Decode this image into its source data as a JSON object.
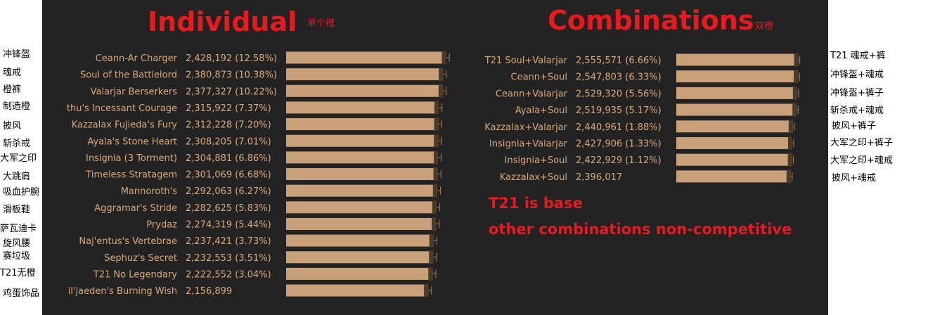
{
  "colors": {
    "panel": "#232323",
    "bar": "#c9a078",
    "bar_text": "#d9a878",
    "whisker": "#a87e5a",
    "marker": "#4a3a2a",
    "title": "#e8191f"
  },
  "header": {
    "individual_title": "Individual",
    "individual_sub": "单个橙",
    "combinations_title": "Combinations",
    "combinations_sub": "双橙"
  },
  "notes": {
    "line1": "T21 is base",
    "line2": "other combinations non-competitive"
  },
  "left_labels": [
    "冲锋盔",
    "魂戒",
    "橙裤",
    "制造橙",
    "披风",
    "斩杀戒",
    "大军之印",
    "大跳肩",
    "吸血护腕",
    "滑板鞋",
    "萨瓦迪卡",
    "旋风腰",
    "赛垃圾",
    "T21无橙",
    "鸡蛋饰品"
  ],
  "right_labels": [
    "T21 魂戒+裤",
    "冲锋盔+魂戒",
    "冲锋盔+裤子",
    "斩杀戒+魂戒",
    "披风+裤子",
    "大军之印+裤子",
    "大军之印+魂戒",
    "披风+魂戒"
  ],
  "chart_data": [
    {
      "type": "bar",
      "title": "Individual",
      "orientation": "horizontal",
      "categories": [
        "Ceann-Ar Charger",
        "Soul of the Battlelord",
        "Valarjar Berserkers",
        "thu's Incessant Courage",
        "Kazzalax Fujieda's Fury",
        "Ayala's Stone Heart",
        "Insignia (3 Torment)",
        "Timeless Stratagem",
        "Mannoroth's",
        "Aggramar's Stride",
        "Prydaz",
        "Naj'entus's Vertebrae",
        "Sephuz's Secret",
        "T21 No Legendary",
        "il'jaeden's Burning Wish"
      ],
      "values": [
        2428192,
        2380873,
        2377327,
        2315922,
        2312228,
        2308205,
        2304881,
        2301069,
        2292063,
        2282625,
        2274319,
        2237421,
        2232553,
        2222552,
        2156899
      ],
      "value_labels": [
        "2,428,192 (12.58%)",
        "2,380,873 (10.38%)",
        "2,377,327 (10.22%)",
        "2,315,922 (7.37%)",
        "2,312,228 (7.20%)",
        "2,308,205 (7.01%)",
        "2,304,881 (6.86%)",
        "2,301,069 (6.68%)",
        "2,292,063 (6.27%)",
        "2,282,625 (5.83%)",
        "2,274,319 (5.44%)",
        "2,237,421 (3.73%)",
        "2,232,553 (3.51%)",
        "2,222,552 (3.04%)",
        "2,156,899"
      ],
      "xlim": [
        0,
        2540000
      ],
      "error_spread": 50000
    },
    {
      "type": "bar",
      "title": "Combinations",
      "orientation": "horizontal",
      "categories": [
        "T21 Soul+Valarjar",
        "Ceann+Soul",
        "Ceann+Valarjar",
        "Ayala+Soul",
        "Kazzalax+Valarjar",
        "Insignia+Valarjar",
        "Insignia+Soul",
        "Kazzalax+Soul"
      ],
      "values": [
        2555571,
        2547803,
        2529320,
        2519935,
        2440961,
        2427906,
        2422929,
        2396017
      ],
      "value_labels": [
        "2,555,571 (6.66%)",
        "2,547,803 (6.33%)",
        "2,529,320 (5.56%)",
        "2,519,935 (5.17%)",
        "2,440,961 (1.88%)",
        "2,427,906 (1.33%)",
        "2,422,929 (1.12%)",
        "2,396,017"
      ],
      "xlim": [
        0,
        2590000
      ],
      "error_spread": 30000
    }
  ]
}
